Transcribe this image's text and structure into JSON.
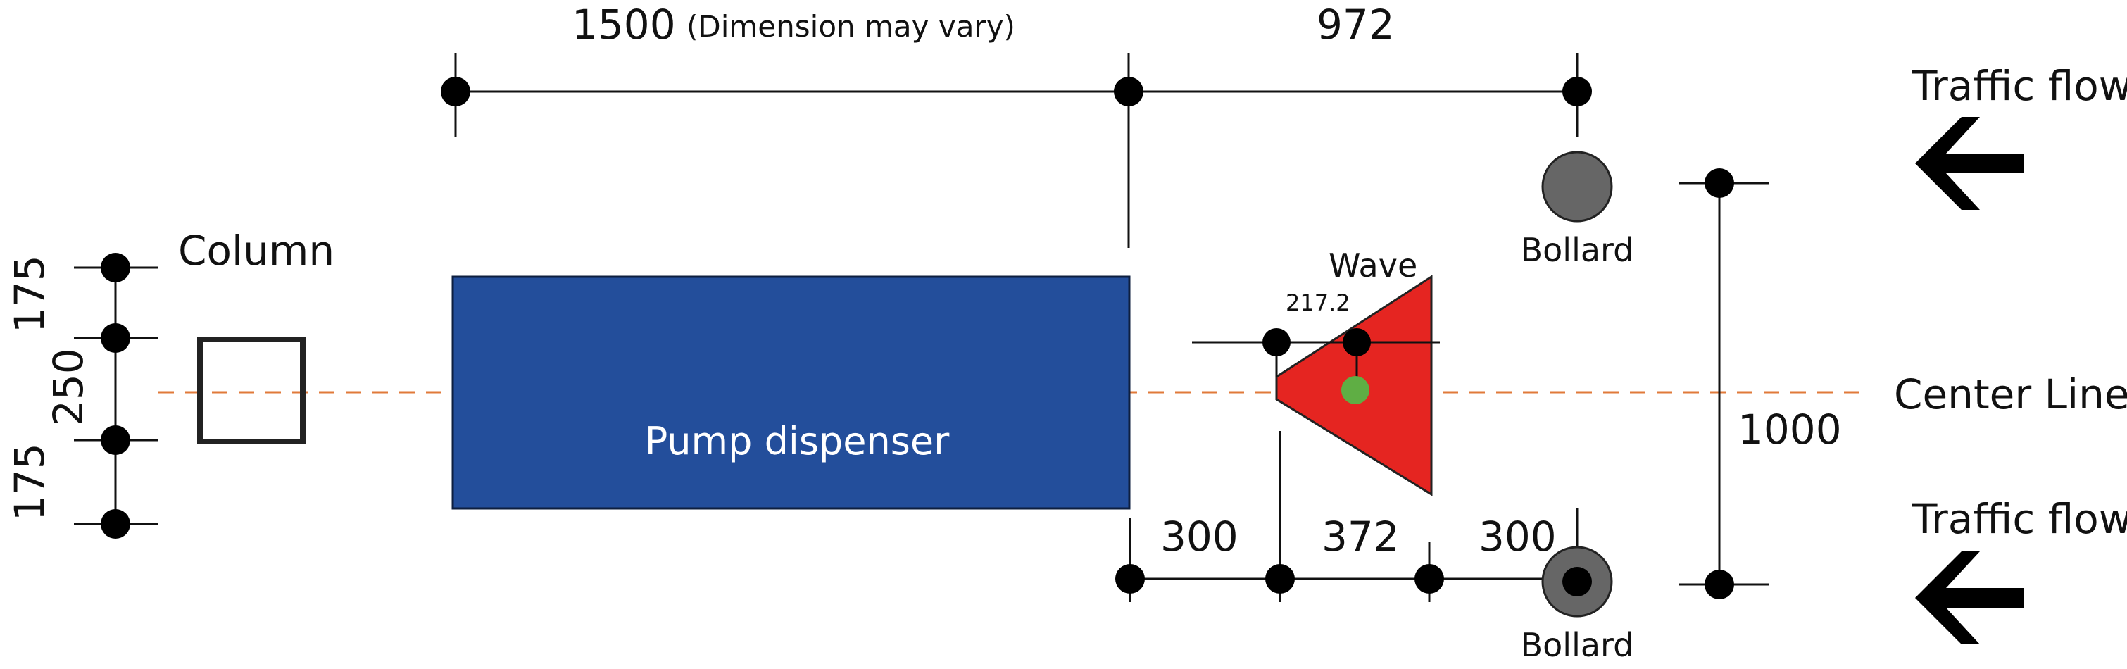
{
  "dimensions": {
    "top_left_value": "1500",
    "top_left_note": "(Dimension may vary)",
    "top_right_value": "972",
    "left_top": "175",
    "left_middle": "250",
    "left_bottom": "175",
    "bottom_1": "300",
    "bottom_2": "372",
    "bottom_3": "300",
    "right_height": "1000",
    "wave_offset": "217.2"
  },
  "labels": {
    "column": "Column",
    "pump": "Pump dispenser",
    "wave": "Wave",
    "bollard_top": "Bollard",
    "bollard_bottom": "Bollard",
    "center_line": "Center Line",
    "traffic_top": "Traffic flow",
    "traffic_bottom": "Traffic flow"
  },
  "colors": {
    "pump": "#234e9b",
    "wave": "#e52521",
    "wave_marker": "#5fae44",
    "bollard": "#666666",
    "center_line": "#e07a3a"
  },
  "icons": {
    "traffic_arrow": "arrow-left-icon"
  }
}
